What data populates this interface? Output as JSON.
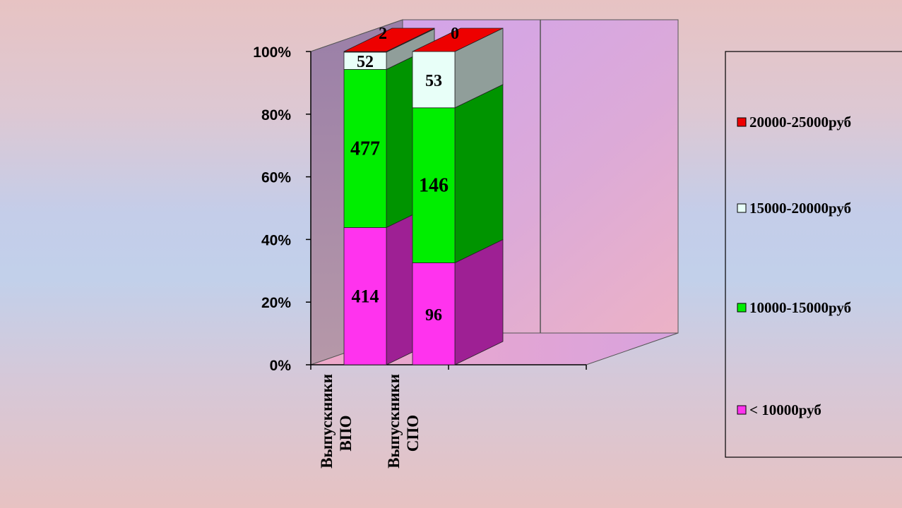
{
  "chart_data": {
    "type": "bar",
    "stacked": "percent",
    "three_d": true,
    "categories": [
      "Выпускники ВПО",
      "Выпускники СПО"
    ],
    "category_lines": [
      [
        "Выпускники",
        "ВПО"
      ],
      [
        "Выпускники",
        "СПО"
      ]
    ],
    "series": [
      {
        "name": "< 10000руб",
        "values": [
          414,
          96
        ],
        "color": "#ff33ee"
      },
      {
        "name": "10000-15000руб",
        "values": [
          477,
          146
        ],
        "color": "#00ee00"
      },
      {
        "name": "15000-20000руб",
        "values": [
          52,
          53
        ],
        "color": "#e8fff8"
      },
      {
        "name": "20000-25000руб",
        "values": [
          2,
          0
        ],
        "color": "#ee0000"
      }
    ],
    "yaxis": {
      "min": 0,
      "max": 100,
      "unit": "%",
      "ticks": [
        "0%",
        "20%",
        "40%",
        "60%",
        "80%",
        "100%"
      ]
    },
    "legend_order": [
      "20000-25000руб",
      "15000-20000руб",
      "10000-15000руб",
      "< 10000руб"
    ],
    "legend_position": "right",
    "title": "",
    "xlabel": "",
    "ylabel": ""
  }
}
